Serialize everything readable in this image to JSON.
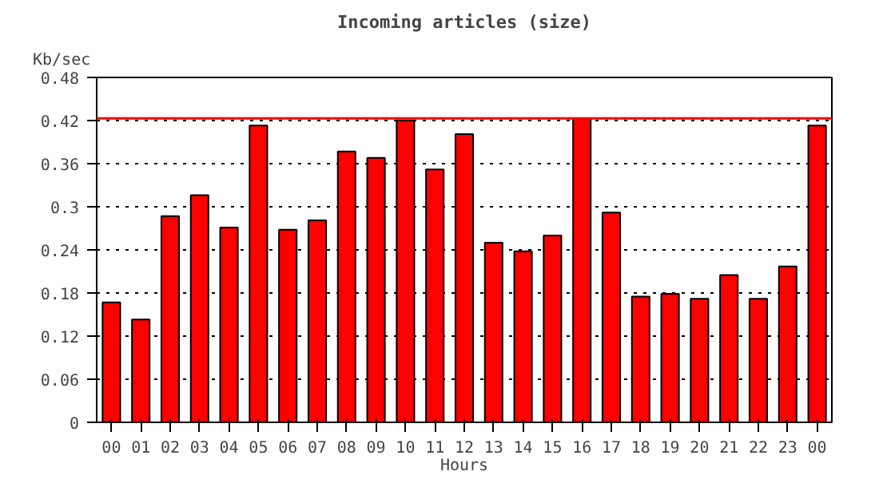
{
  "chart_data": {
    "type": "bar",
    "title": "Incoming articles (size)",
    "xlabel": "Hours",
    "ylabel": "Kb/sec",
    "categories": [
      "00",
      "01",
      "02",
      "03",
      "04",
      "05",
      "06",
      "07",
      "08",
      "09",
      "10",
      "11",
      "12",
      "13",
      "14",
      "15",
      "16",
      "17",
      "18",
      "19",
      "20",
      "21",
      "22",
      "23",
      "00"
    ],
    "values": [
      0.167,
      0.143,
      0.287,
      0.316,
      0.271,
      0.413,
      0.268,
      0.281,
      0.377,
      0.368,
      0.42,
      0.352,
      0.401,
      0.25,
      0.238,
      0.26,
      0.423,
      0.292,
      0.175,
      0.179,
      0.172,
      0.205,
      0.172,
      0.217,
      0.413
    ],
    "color": "#ff0000",
    "ylim": [
      0,
      0.48
    ],
    "yticks": [
      0,
      0.06,
      0.12,
      0.18,
      0.24,
      0.3,
      0.36,
      0.42,
      0.48
    ],
    "grid": "y",
    "line_style": "dotted",
    "ref_lines": [
      {
        "axis": "y",
        "value": 0.423,
        "color": "#ff0000"
      }
    ]
  }
}
